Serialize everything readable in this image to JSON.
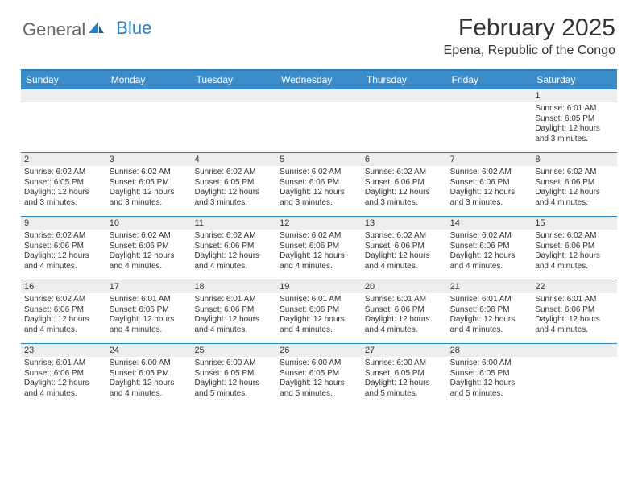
{
  "brand": {
    "part1": "General",
    "part2": "Blue"
  },
  "title": "February 2025",
  "location": "Epena, Republic of the Congo",
  "colors": {
    "header_bg": "#3b8cc9",
    "header_border": "#2a7fbf",
    "daynum_bg": "#eceded",
    "text": "#333333",
    "white": "#ffffff"
  },
  "days_of_week": [
    "Sunday",
    "Monday",
    "Tuesday",
    "Wednesday",
    "Thursday",
    "Friday",
    "Saturday"
  ],
  "weeks": [
    [
      {
        "n": "",
        "empty": true
      },
      {
        "n": "",
        "empty": true
      },
      {
        "n": "",
        "empty": true
      },
      {
        "n": "",
        "empty": true
      },
      {
        "n": "",
        "empty": true
      },
      {
        "n": "",
        "empty": true
      },
      {
        "n": "1",
        "sunrise": "Sunrise: 6:01 AM",
        "sunset": "Sunset: 6:05 PM",
        "daylight": "Daylight: 12 hours and 3 minutes."
      }
    ],
    [
      {
        "n": "2",
        "sunrise": "Sunrise: 6:02 AM",
        "sunset": "Sunset: 6:05 PM",
        "daylight": "Daylight: 12 hours and 3 minutes."
      },
      {
        "n": "3",
        "sunrise": "Sunrise: 6:02 AM",
        "sunset": "Sunset: 6:05 PM",
        "daylight": "Daylight: 12 hours and 3 minutes."
      },
      {
        "n": "4",
        "sunrise": "Sunrise: 6:02 AM",
        "sunset": "Sunset: 6:05 PM",
        "daylight": "Daylight: 12 hours and 3 minutes."
      },
      {
        "n": "5",
        "sunrise": "Sunrise: 6:02 AM",
        "sunset": "Sunset: 6:06 PM",
        "daylight": "Daylight: 12 hours and 3 minutes."
      },
      {
        "n": "6",
        "sunrise": "Sunrise: 6:02 AM",
        "sunset": "Sunset: 6:06 PM",
        "daylight": "Daylight: 12 hours and 3 minutes."
      },
      {
        "n": "7",
        "sunrise": "Sunrise: 6:02 AM",
        "sunset": "Sunset: 6:06 PM",
        "daylight": "Daylight: 12 hours and 3 minutes."
      },
      {
        "n": "8",
        "sunrise": "Sunrise: 6:02 AM",
        "sunset": "Sunset: 6:06 PM",
        "daylight": "Daylight: 12 hours and 4 minutes."
      }
    ],
    [
      {
        "n": "9",
        "sunrise": "Sunrise: 6:02 AM",
        "sunset": "Sunset: 6:06 PM",
        "daylight": "Daylight: 12 hours and 4 minutes."
      },
      {
        "n": "10",
        "sunrise": "Sunrise: 6:02 AM",
        "sunset": "Sunset: 6:06 PM",
        "daylight": "Daylight: 12 hours and 4 minutes."
      },
      {
        "n": "11",
        "sunrise": "Sunrise: 6:02 AM",
        "sunset": "Sunset: 6:06 PM",
        "daylight": "Daylight: 12 hours and 4 minutes."
      },
      {
        "n": "12",
        "sunrise": "Sunrise: 6:02 AM",
        "sunset": "Sunset: 6:06 PM",
        "daylight": "Daylight: 12 hours and 4 minutes."
      },
      {
        "n": "13",
        "sunrise": "Sunrise: 6:02 AM",
        "sunset": "Sunset: 6:06 PM",
        "daylight": "Daylight: 12 hours and 4 minutes."
      },
      {
        "n": "14",
        "sunrise": "Sunrise: 6:02 AM",
        "sunset": "Sunset: 6:06 PM",
        "daylight": "Daylight: 12 hours and 4 minutes."
      },
      {
        "n": "15",
        "sunrise": "Sunrise: 6:02 AM",
        "sunset": "Sunset: 6:06 PM",
        "daylight": "Daylight: 12 hours and 4 minutes."
      }
    ],
    [
      {
        "n": "16",
        "sunrise": "Sunrise: 6:02 AM",
        "sunset": "Sunset: 6:06 PM",
        "daylight": "Daylight: 12 hours and 4 minutes."
      },
      {
        "n": "17",
        "sunrise": "Sunrise: 6:01 AM",
        "sunset": "Sunset: 6:06 PM",
        "daylight": "Daylight: 12 hours and 4 minutes."
      },
      {
        "n": "18",
        "sunrise": "Sunrise: 6:01 AM",
        "sunset": "Sunset: 6:06 PM",
        "daylight": "Daylight: 12 hours and 4 minutes."
      },
      {
        "n": "19",
        "sunrise": "Sunrise: 6:01 AM",
        "sunset": "Sunset: 6:06 PM",
        "daylight": "Daylight: 12 hours and 4 minutes."
      },
      {
        "n": "20",
        "sunrise": "Sunrise: 6:01 AM",
        "sunset": "Sunset: 6:06 PM",
        "daylight": "Daylight: 12 hours and 4 minutes."
      },
      {
        "n": "21",
        "sunrise": "Sunrise: 6:01 AM",
        "sunset": "Sunset: 6:06 PM",
        "daylight": "Daylight: 12 hours and 4 minutes."
      },
      {
        "n": "22",
        "sunrise": "Sunrise: 6:01 AM",
        "sunset": "Sunset: 6:06 PM",
        "daylight": "Daylight: 12 hours and 4 minutes."
      }
    ],
    [
      {
        "n": "23",
        "sunrise": "Sunrise: 6:01 AM",
        "sunset": "Sunset: 6:06 PM",
        "daylight": "Daylight: 12 hours and 4 minutes."
      },
      {
        "n": "24",
        "sunrise": "Sunrise: 6:00 AM",
        "sunset": "Sunset: 6:05 PM",
        "daylight": "Daylight: 12 hours and 4 minutes."
      },
      {
        "n": "25",
        "sunrise": "Sunrise: 6:00 AM",
        "sunset": "Sunset: 6:05 PM",
        "daylight": "Daylight: 12 hours and 5 minutes."
      },
      {
        "n": "26",
        "sunrise": "Sunrise: 6:00 AM",
        "sunset": "Sunset: 6:05 PM",
        "daylight": "Daylight: 12 hours and 5 minutes."
      },
      {
        "n": "27",
        "sunrise": "Sunrise: 6:00 AM",
        "sunset": "Sunset: 6:05 PM",
        "daylight": "Daylight: 12 hours and 5 minutes."
      },
      {
        "n": "28",
        "sunrise": "Sunrise: 6:00 AM",
        "sunset": "Sunset: 6:05 PM",
        "daylight": "Daylight: 12 hours and 5 minutes."
      },
      {
        "n": "",
        "empty": true
      }
    ]
  ]
}
